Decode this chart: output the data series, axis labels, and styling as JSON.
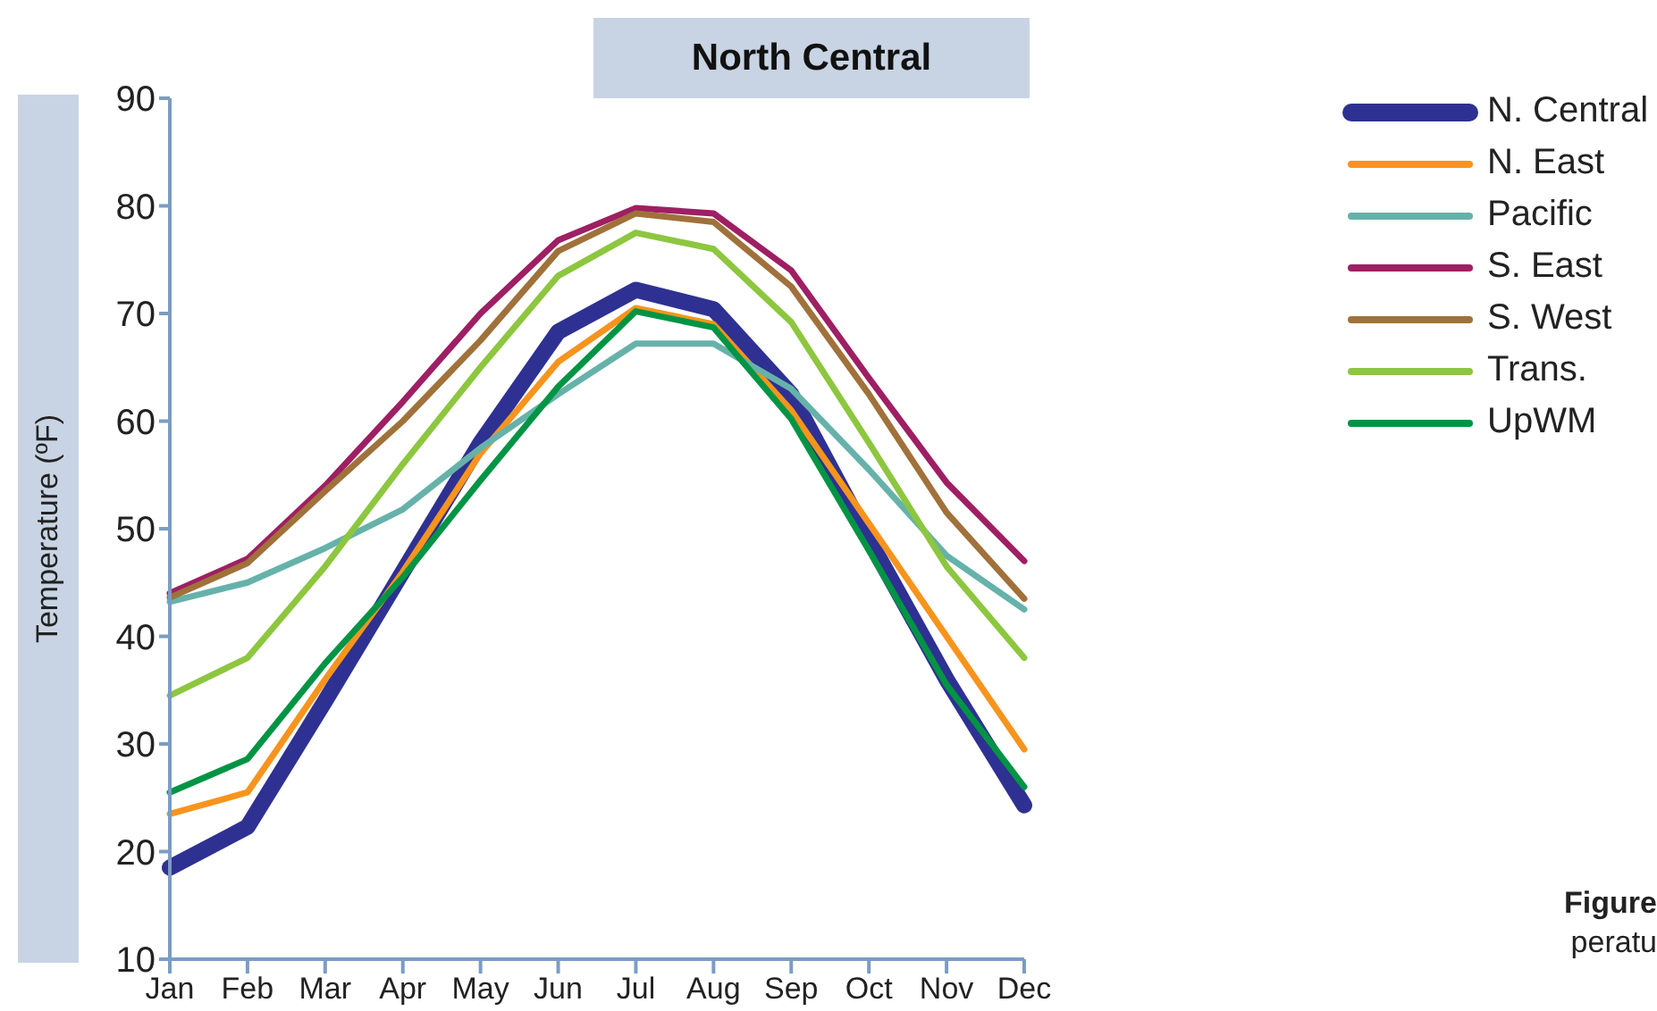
{
  "chart_data": {
    "type": "line",
    "title": "North Central",
    "ylabel": "Temperature (ºF)",
    "categories": [
      "Jan",
      "Feb",
      "Mar",
      "Apr",
      "May",
      "Jun",
      "Jul",
      "Aug",
      "Sep",
      "Oct",
      "Nov",
      "Dec"
    ],
    "series": [
      {
        "name": "N. Central",
        "color": "#2e3192",
        "values": [
          18.5,
          22.3,
          34,
          46,
          58,
          68.3,
          72.2,
          70.4,
          62.5,
          49,
          36,
          24.3
        ]
      },
      {
        "name": "N. East",
        "color": "#f7941d",
        "values": [
          23.5,
          25.5,
          36,
          46,
          57,
          65.5,
          70.5,
          69,
          61,
          50.5,
          40,
          29.5
        ]
      },
      {
        "name": "Pacific",
        "color": "#66b2aa",
        "values": [
          43.2,
          45,
          48.2,
          51.8,
          57.5,
          62.5,
          67.2,
          67.2,
          63,
          55.5,
          47.5,
          42.5
        ]
      },
      {
        "name": "S. East",
        "color": "#9e1f63",
        "values": [
          44,
          47.2,
          54,
          61.8,
          70,
          76.8,
          79.8,
          79.3,
          74,
          64,
          54.3,
          47
        ]
      },
      {
        "name": "S. West",
        "color": "#a0713a",
        "values": [
          43.6,
          46.8,
          53.5,
          60,
          67.5,
          75.8,
          79.3,
          78.5,
          72.5,
          62.5,
          51.5,
          43.5
        ]
      },
      {
        "name": "Trans.",
        "color": "#8dc63f",
        "values": [
          34.5,
          38,
          46.5,
          56,
          65,
          73.5,
          77.5,
          76,
          69.2,
          58,
          46.5,
          38
        ]
      },
      {
        "name": "UpWM",
        "color": "#009444",
        "values": [
          25.5,
          28.6,
          37.5,
          45.5,
          54.5,
          63.2,
          70.2,
          68.7,
          60.2,
          48,
          35.5,
          26
        ]
      }
    ],
    "ylim": [
      10,
      90
    ],
    "yticks": [
      10,
      20,
      30,
      40,
      50,
      60,
      70,
      80,
      90
    ],
    "grid": false,
    "legend": "top right",
    "marker": "none",
    "line_style": "solid",
    "annotations": [
      "Figure",
      "peratu"
    ]
  }
}
